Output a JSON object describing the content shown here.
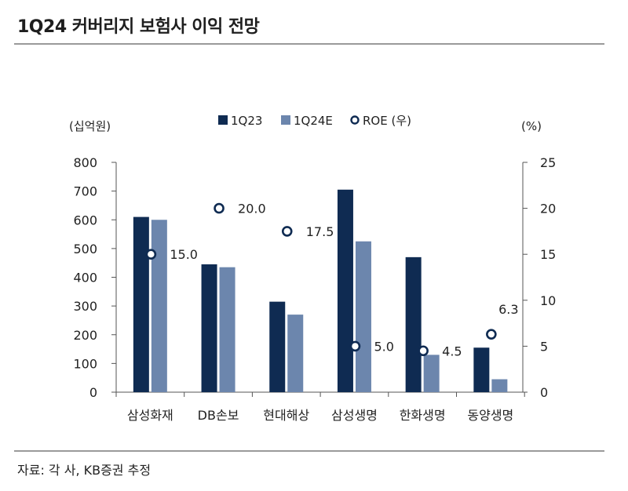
{
  "header": {
    "title": "1Q24 커버리지 보험사 이익 전망"
  },
  "footer": {
    "source": "자료: 각 사, KB증권 추정"
  },
  "colors": {
    "series_1q23": "#0f2b52",
    "series_1q24e": "#6c86ad",
    "roe_marker": "#0f2b52"
  },
  "chart_data": {
    "type": "bar",
    "categories": [
      "삼성화재",
      "DB손보",
      "현대해상",
      "삼성생명",
      "한화생명",
      "동양생명"
    ],
    "series": [
      {
        "name": "1Q23",
        "values": [
          610,
          445,
          315,
          705,
          470,
          155
        ]
      },
      {
        "name": "1Q24E",
        "values": [
          600,
          435,
          270,
          525,
          130,
          45
        ]
      }
    ],
    "overlay_series": {
      "name": "ROE (우)",
      "type": "scatter",
      "axis": "right",
      "values": [
        15.0,
        20.0,
        17.5,
        5.0,
        4.5,
        6.3
      ],
      "labels": [
        "15.0",
        "20.0",
        "17.5",
        "5.0",
        "4.5",
        "6.3"
      ]
    },
    "left_axis": {
      "unit_label": "(십억원)",
      "ylim": [
        0,
        800
      ],
      "ticks": [
        0,
        100,
        200,
        300,
        400,
        500,
        600,
        700,
        800
      ]
    },
    "right_axis": {
      "unit_label": "(%)",
      "ylim": [
        0,
        25
      ],
      "ticks": [
        0,
        5,
        10,
        15,
        20,
        25
      ]
    },
    "legend": {
      "position": "top-center",
      "entries": [
        "1Q23",
        "1Q24E",
        "ROE (우)"
      ]
    },
    "grid": false
  }
}
